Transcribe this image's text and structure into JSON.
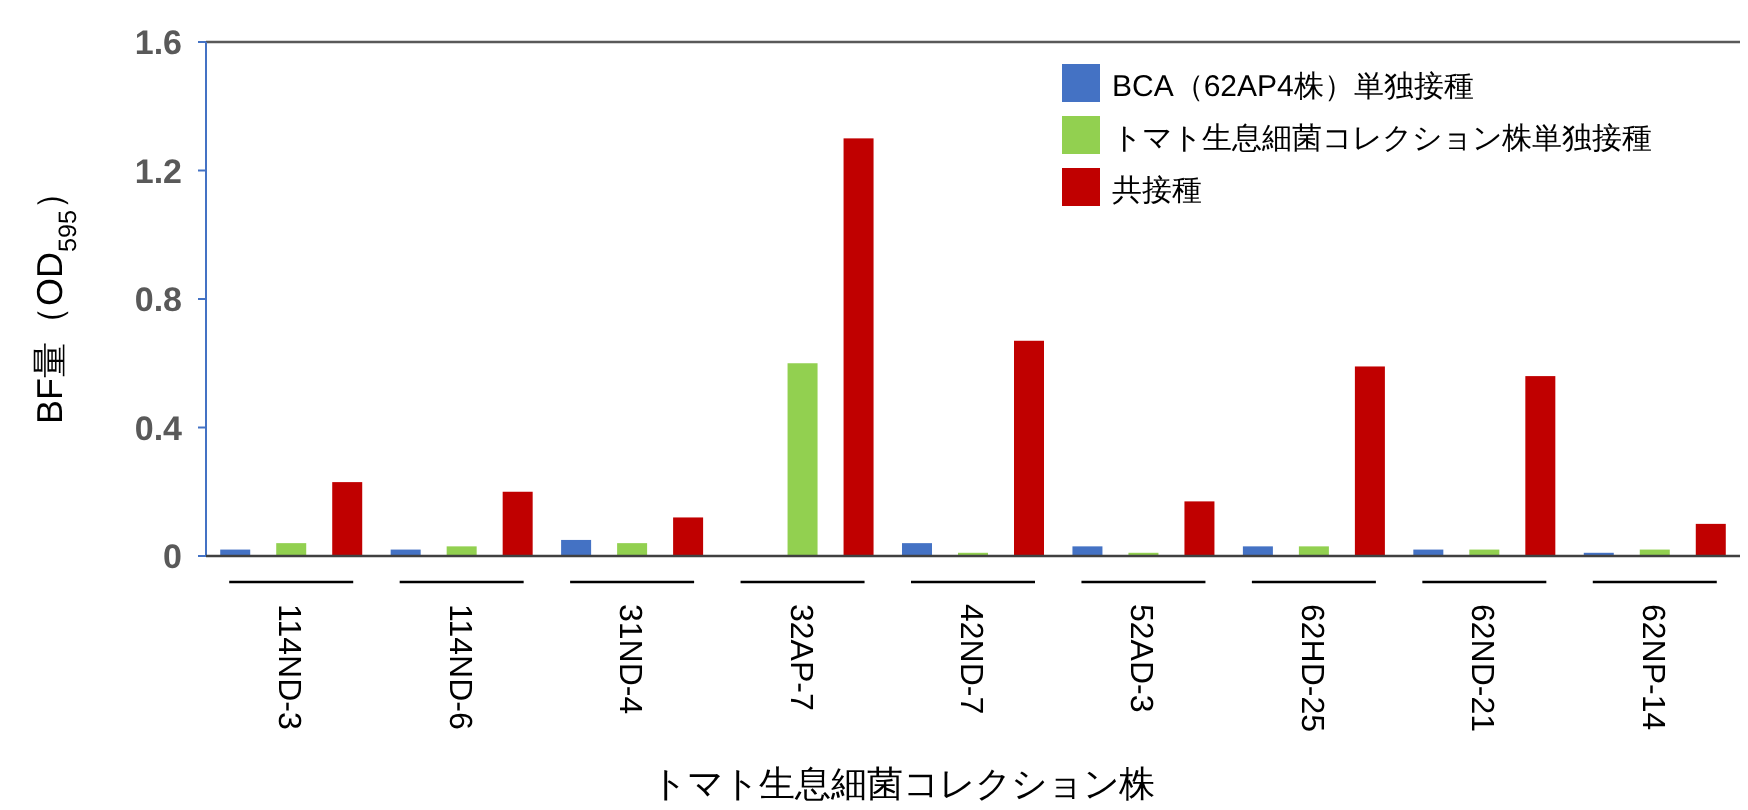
{
  "chart_data": {
    "type": "bar",
    "ylabel": "BF量（OD$_{595}$）",
    "xlabel": "トマト生息細菌コレクション株",
    "categories": [
      "114ND-3",
      "114ND-6",
      "31ND-4",
      "32AP-7",
      "42ND-7",
      "52AD-3",
      "62HD-25",
      "62ND-21",
      "62NP-14"
    ],
    "series": [
      {
        "name": "BCA（62AP4株）単独接種",
        "color": "#4472c4",
        "values": [
          0.02,
          0.02,
          0.05,
          0,
          0.04,
          0.03,
          0.03,
          0.02,
          0.01
        ]
      },
      {
        "name": "トマト生息細菌コレクション株単独接種",
        "color": "#92d050",
        "values": [
          0.04,
          0.03,
          0.04,
          0.6,
          0.01,
          0.01,
          0.03,
          0.02,
          0.02
        ]
      },
      {
        "name": "共接種",
        "color": "#c00000",
        "values": [
          0.23,
          0.2,
          0.12,
          1.3,
          0.67,
          0.17,
          0.59,
          0.56,
          0.1
        ]
      }
    ],
    "ylim": [
      0,
      1.6
    ],
    "yticks": [
      0,
      0.4,
      0.8,
      1.2,
      1.6
    ],
    "grid": false,
    "legend": "top right"
  }
}
